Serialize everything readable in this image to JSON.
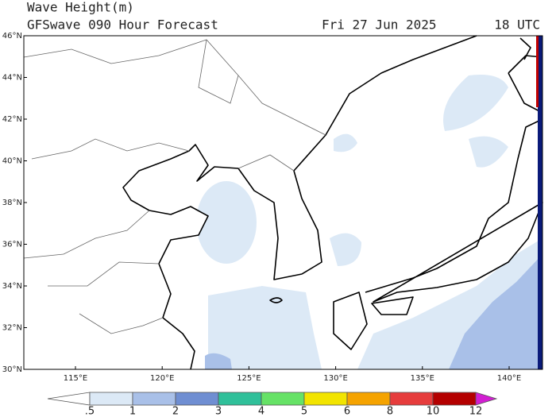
{
  "header": {
    "title": "Wave Height(m)",
    "subtitle": "GFSwave 090 Hour Forecast",
    "date": "Fri 27 Jun 2025",
    "time": "18 UTC"
  },
  "map": {
    "lat_labels": [
      "46°N",
      "44°N",
      "42°N",
      "40°N",
      "38°N",
      "36°N",
      "34°N",
      "32°N",
      "30°N"
    ],
    "lon_labels": [
      "115°E",
      "120°E",
      "125°E",
      "130°E",
      "135°E",
      "140°E"
    ]
  },
  "colorbar": {
    "labels": [
      ".5",
      "1",
      "2",
      "3",
      "4",
      "5",
      "6",
      "8",
      "10",
      "12"
    ],
    "colors": [
      "#ffffff",
      "#dce9f6",
      "#a9c0e8",
      "#6f8ed2",
      "#30c09a",
      "#66e266",
      "#f2e400",
      "#f5a300",
      "#e63c3c",
      "#b40000",
      "#d21ed2"
    ]
  }
}
